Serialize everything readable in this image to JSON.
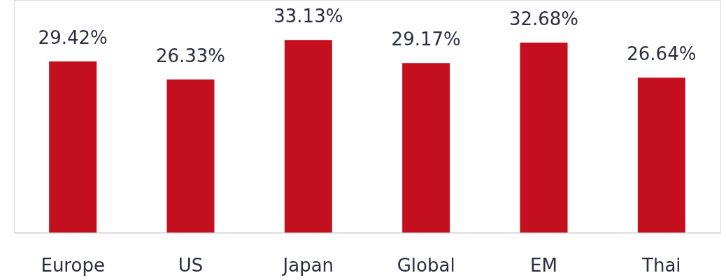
{
  "chart_data": {
    "type": "bar",
    "categories": [
      "Europe",
      "US",
      "Japan",
      "Global",
      "EM",
      "Thai"
    ],
    "values": [
      29.42,
      26.33,
      33.13,
      29.17,
      32.68,
      26.64
    ],
    "value_labels": [
      "29.42%",
      "26.33%",
      "33.13%",
      "29.17%",
      "32.68%",
      "26.64%"
    ],
    "color": "#c40f1e",
    "ylim": [
      0,
      40
    ],
    "grid": false
  }
}
